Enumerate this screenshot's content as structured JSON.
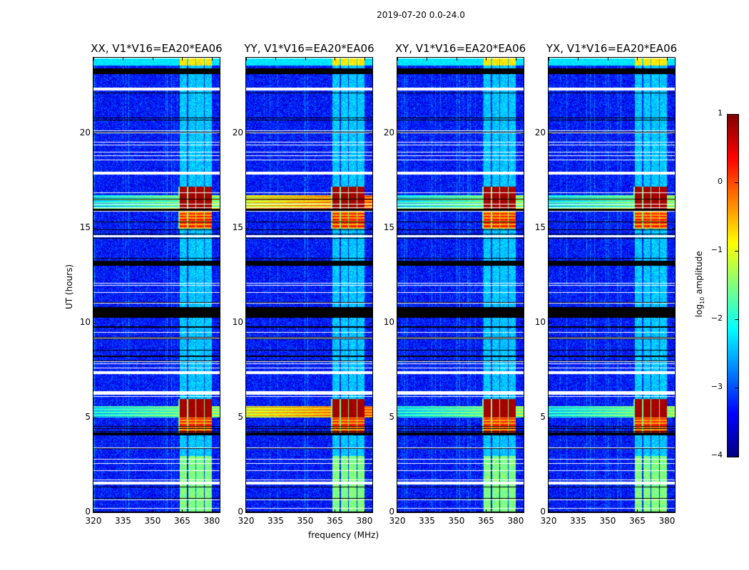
{
  "suptitle": "2019-07-20 0.0-24.0",
  "chart_data": {
    "type": "heatmap",
    "title": "2019-07-20 0.0-24.0",
    "xlabel": "frequency (MHz)",
    "ylabel": "UT (hours)",
    "xlim": [
      320,
      384
    ],
    "ylim": [
      0,
      24
    ],
    "xticks": [
      320,
      335,
      350,
      365,
      380
    ],
    "yticks": [
      0,
      5,
      10,
      15,
      20
    ],
    "panels": [
      {
        "title": "XX, V1*V16=EA20*EA06",
        "variant": "xx"
      },
      {
        "title": "YY, V1*V16=EA20*EA06",
        "variant": "yy"
      },
      {
        "title": "XY, V1*V16=EA20*EA06",
        "variant": "xy"
      },
      {
        "title": "YX, V1*V16=EA20*EA06",
        "variant": "yx"
      }
    ],
    "background_log_amplitude": -3.3,
    "signal_band_mhz": [
      363,
      380
    ],
    "strong_signal_hours": [
      [
        4.2,
        6.0
      ],
      [
        15.0,
        17.2
      ]
    ],
    "weak_signal_hours": [
      [
        0,
        3.0
      ]
    ],
    "flagged_hours_white": [
      [
        1.5,
        1.65
      ],
      [
        6.25,
        6.4
      ],
      [
        7.3,
        7.45
      ],
      [
        14.55,
        14.65
      ],
      [
        17.85,
        18.0
      ],
      [
        19.0,
        19.05
      ],
      [
        22.3,
        22.45
      ]
    ],
    "zeroed_hours_black": [
      [
        23.15,
        23.45
      ],
      [
        10.3,
        10.85
      ],
      [
        13.05,
        13.3
      ],
      [
        4.1,
        4.25
      ]
    ],
    "colorbar": {
      "label": "log10 amplitude",
      "label_main": "log",
      "label_sub": "10",
      "label_rest": " amplitude",
      "min": -4,
      "max": 1,
      "ticks": [
        "1",
        "0",
        "−1",
        "−2",
        "−3",
        "−4"
      ],
      "colormap": "jet"
    }
  }
}
